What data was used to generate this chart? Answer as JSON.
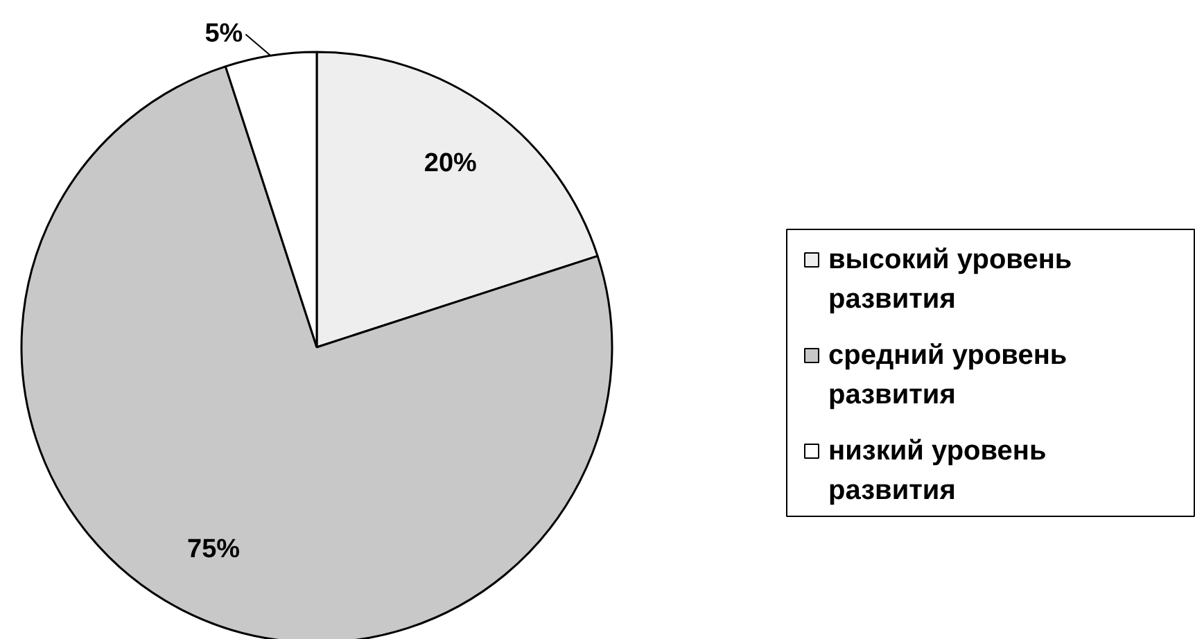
{
  "chart_data": {
    "type": "pie",
    "categories": [
      "высокий уровень развития",
      "средний уровень развития",
      "низкий уровень развития"
    ],
    "values": [
      20,
      75,
      5
    ],
    "colors": [
      "#eeeeee",
      "#c8c8c8",
      "#ffffff"
    ],
    "value_labels": [
      "20%",
      "75%",
      "5%"
    ],
    "legend": "right"
  }
}
